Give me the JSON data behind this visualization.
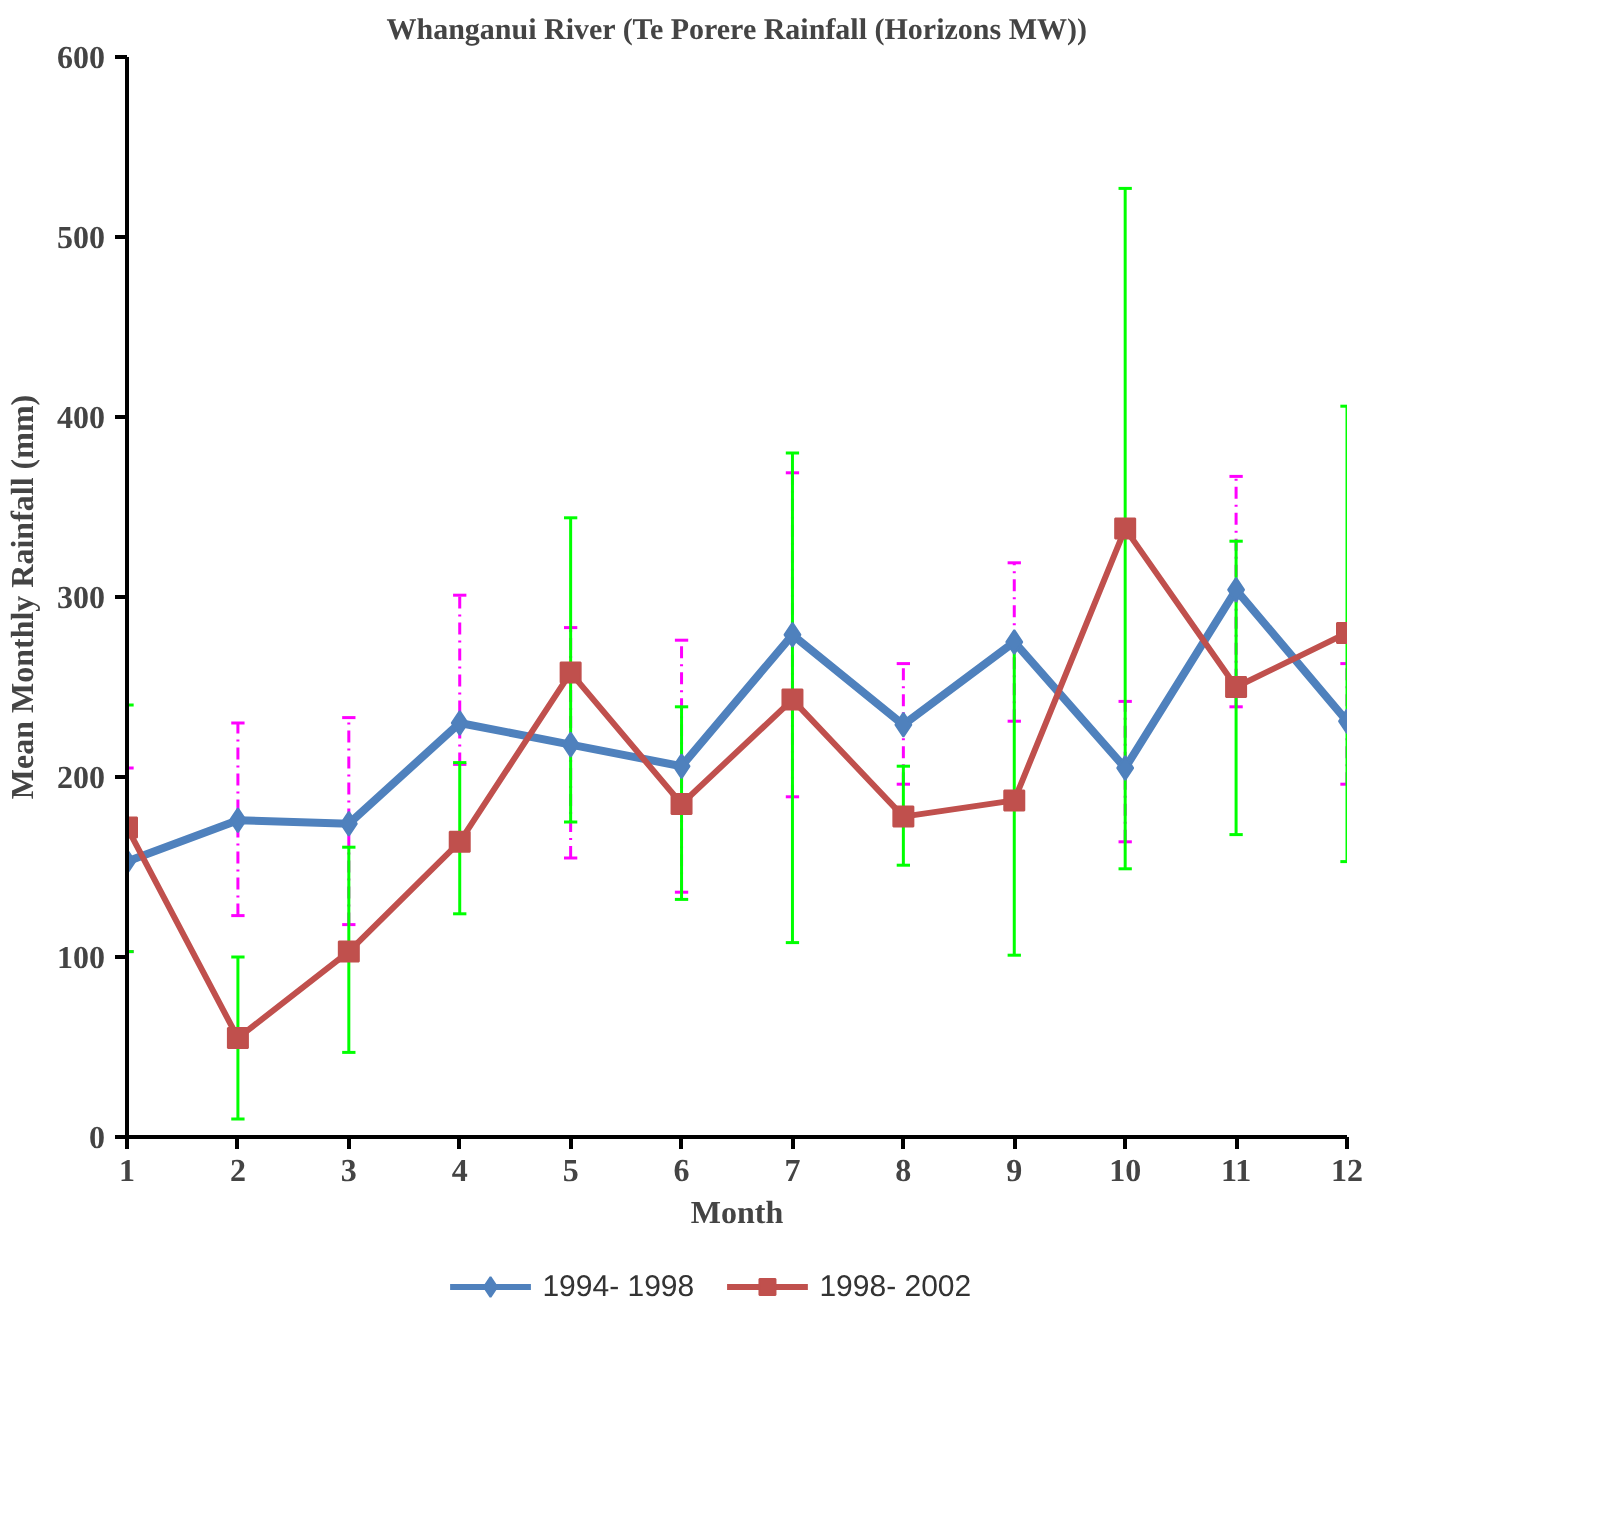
{
  "chart_data": {
    "type": "line",
    "title": "Whanganui River (Te Porere Rainfall (Horizons MW))",
    "xlabel": "Month",
    "ylabel": "Mean Monthly Rainfall (mm)",
    "x": [
      1,
      2,
      3,
      4,
      5,
      6,
      7,
      8,
      9,
      10,
      11,
      12
    ],
    "xlim": [
      1,
      12
    ],
    "xticks": [
      1,
      2,
      3,
      4,
      5,
      6,
      7,
      8,
      9,
      10,
      11,
      12
    ],
    "ylim": [
      0,
      600
    ],
    "yticks": [
      0,
      100,
      200,
      300,
      400,
      500,
      600
    ],
    "grid": false,
    "legend": "bottom",
    "line_style": "solid",
    "series": [
      {
        "name": "1994- 1998",
        "color": "#4f81bd",
        "marker": "diamond",
        "values": [
          153,
          176,
          174,
          230,
          218,
          206,
          279,
          229,
          275,
          205,
          304,
          231
        ],
        "errors": [
          [
            103,
            205
          ],
          [
            123,
            230
          ],
          [
            118,
            233
          ],
          [
            207,
            301
          ],
          [
            155,
            283
          ],
          [
            136,
            276
          ],
          [
            189,
            369
          ],
          [
            196,
            263
          ],
          [
            231,
            319
          ],
          [
            164,
            242
          ],
          [
            239,
            367
          ],
          [
            196,
            263
          ]
        ]
      },
      {
        "name": "1998- 2002",
        "color": "#c0504d",
        "marker": "square",
        "values": [
          172,
          55,
          103,
          164,
          258,
          185,
          243,
          178,
          187,
          338,
          250,
          280
        ],
        "errors": [
          [
            103,
            240
          ],
          [
            10,
            100
          ],
          [
            47,
            161
          ],
          [
            124,
            208
          ],
          [
            175,
            344
          ],
          [
            132,
            239
          ],
          [
            108,
            380
          ],
          [
            151,
            206
          ],
          [
            101,
            275
          ],
          [
            149,
            527
          ],
          [
            168,
            331
          ],
          [
            153,
            406
          ]
        ]
      }
    ]
  }
}
